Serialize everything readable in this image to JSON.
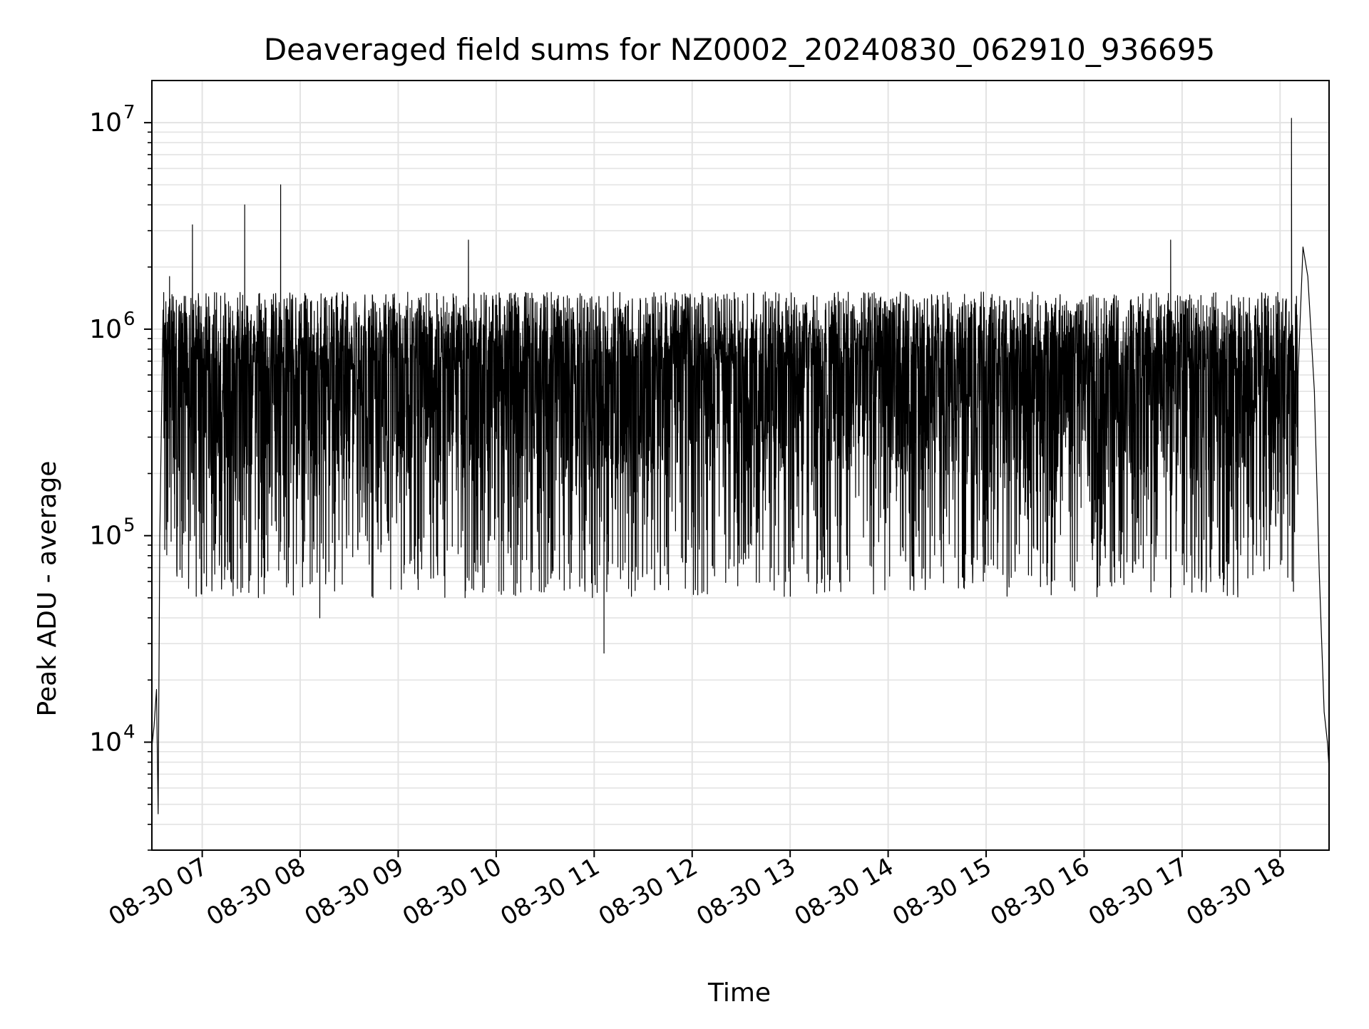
{
  "chart_data": {
    "type": "line",
    "title": "Deaveraged field sums for NZ0002_20240830_062910_936695",
    "xlabel": "Time",
    "ylabel": "Peak ADU - average",
    "yscale": "log",
    "xlim": [
      "2024-08-30T06:29:10",
      "2024-08-30T18:30:00"
    ],
    "ylim": [
      3000,
      16000000
    ],
    "grid": true,
    "line_color": "#000000",
    "x_ticks": [
      "2024-08-30T07:00",
      "2024-08-30T08:00",
      "2024-08-30T09:00",
      "2024-08-30T10:00",
      "2024-08-30T11:00",
      "2024-08-30T12:00",
      "2024-08-30T13:00",
      "2024-08-30T14:00",
      "2024-08-30T15:00",
      "2024-08-30T16:00",
      "2024-08-30T17:00",
      "2024-08-30T18:00"
    ],
    "x_tick_labels": [
      "08-30 07",
      "08-30 08",
      "08-30 09",
      "08-30 10",
      "08-30 11",
      "08-30 12",
      "08-30 13",
      "08-30 14",
      "08-30 15",
      "08-30 16",
      "08-30 17",
      "08-30 18"
    ],
    "y_ticks": [
      10000,
      100000,
      1000000,
      10000000
    ],
    "y_tick_labels": [
      {
        "base": "10",
        "exp": "4"
      },
      {
        "base": "10",
        "exp": "5"
      },
      {
        "base": "10",
        "exp": "6"
      },
      {
        "base": "10",
        "exp": "7"
      }
    ],
    "series": [
      {
        "typical_level": 1000000,
        "typical_dip_floor": 50000,
        "x": [
          "2024-08-30T06:29:10",
          "2024-08-30T06:30:30",
          "2024-08-30T06:32:00",
          "2024-08-30T06:33:00",
          "2024-08-30T06:34:00",
          "2024-08-30T06:36:00",
          "2024-08-30T06:40:00",
          "2024-08-30T06:43:00",
          "2024-08-30T06:46:00",
          "2024-08-30T06:50:00",
          "2024-08-30T06:54:00",
          "2024-08-30T07:26:00",
          "2024-08-30T07:48:00",
          "2024-08-30T08:12:00",
          "2024-08-30T09:43:00",
          "2024-08-30T11:06:00",
          "2024-08-30T16:53:00",
          "2024-08-30T18:07:00",
          "2024-08-30T18:11:00",
          "2024-08-30T18:14:00",
          "2024-08-30T18:17:00",
          "2024-08-30T18:21:00",
          "2024-08-30T18:24:00",
          "2024-08-30T18:27:00",
          "2024-08-30T18:29:00",
          "2024-08-30T18:30:00"
        ],
        "y": [
          9500,
          12000,
          18000,
          4500,
          100000,
          1000000,
          1800000,
          1200000,
          600000,
          500000,
          3200000,
          4000000,
          5000000,
          40000,
          2700000,
          27000,
          2700000,
          10500000,
          600000,
          2500000,
          1800000,
          500000,
          65000,
          14000,
          10000,
          7500
        ]
      }
    ]
  }
}
